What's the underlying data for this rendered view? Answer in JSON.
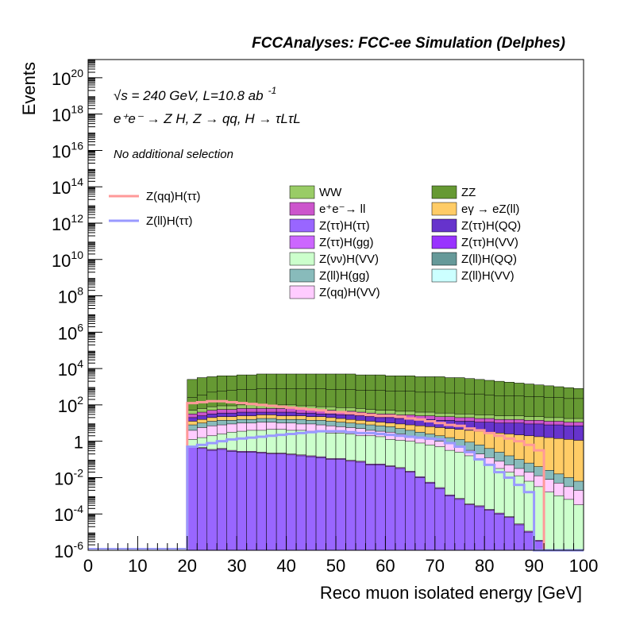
{
  "chart_data": {
    "type": "area",
    "title": "FCCAnalyses: FCC-ee Simulation (Delphes)",
    "xlabel": "Reco muon isolated energy [GeV]",
    "ylabel": "Events",
    "xlim": [
      0,
      100
    ],
    "ylim": [
      1e-06,
      1e+21
    ],
    "yscale": "log",
    "grid": false,
    "legend_position": "top-right",
    "annotations": {
      "energy": "√s = 240 GeV, L=10.8 ab",
      "energy_sup": "-1",
      "process": "e⁺e⁻ → Z H, Z → qq, H → τLτL",
      "selection": "No additional selection"
    },
    "x_ticks": [
      0,
      10,
      20,
      30,
      40,
      50,
      60,
      70,
      80,
      90,
      100
    ],
    "x_tick_labels": [
      "0",
      "10",
      "20",
      "30",
      "40",
      "50",
      "60",
      "70",
      "80",
      "90",
      "100"
    ],
    "y_ticks": [
      1e-06,
      0.0001,
      0.01,
      1,
      100.0,
      10000.0,
      1000000.0,
      100000000.0,
      10000000000.0,
      1000000000000.0,
      100000000000000.0,
      1e+16,
      1e+18,
      1e+20
    ],
    "y_tick_labels": [
      {
        "base": "10",
        "exp": "-6"
      },
      {
        "base": "10",
        "exp": "-4"
      },
      {
        "base": "10",
        "exp": "-2"
      },
      {
        "base": "1",
        "exp": ""
      },
      {
        "base": "10",
        "exp": "2"
      },
      {
        "base": "10",
        "exp": "4"
      },
      {
        "base": "10",
        "exp": "6"
      },
      {
        "base": "10",
        "exp": "8"
      },
      {
        "base": "10",
        "exp": "10"
      },
      {
        "base": "10",
        "exp": "12"
      },
      {
        "base": "10",
        "exp": "14"
      },
      {
        "base": "10",
        "exp": "16"
      },
      {
        "base": "10",
        "exp": "18"
      },
      {
        "base": "10",
        "exp": "20"
      }
    ],
    "bin_edges_start": 20,
    "bin_width": 2,
    "stack_levels": [
      {
        "log_values": [
          -0.3,
          -0.4,
          -0.5,
          -0.45,
          -0.55,
          -0.6,
          -0.6,
          -0.65,
          -0.7,
          -0.7,
          -0.75,
          -0.8,
          -0.85,
          -0.9,
          -1.0,
          -1.0,
          -1.1,
          -1.15,
          -1.3,
          -1.3,
          -1.4,
          -1.5,
          -1.7,
          -2.0,
          -2.3,
          -2.6,
          -3.0,
          -3.2,
          -3.5,
          -3.6,
          -3.8,
          -4.0,
          -4.2,
          -4.6,
          -5.0,
          -5.5,
          -6.0,
          -6.0,
          -6.0,
          -6.0
        ],
        "color": "#9966ff"
      },
      {
        "log_values": [
          -0.25,
          -0.35,
          -0.45,
          -0.4,
          -0.5,
          -0.55,
          -0.55,
          -0.6,
          -0.65,
          -0.65,
          -0.7,
          -0.75,
          -0.8,
          -0.85,
          -0.95,
          -0.95,
          -1.05,
          -1.1,
          -1.25,
          -1.25,
          -1.35,
          -1.45,
          -1.65,
          -1.95,
          -2.25,
          -2.55,
          -2.95,
          -3.15,
          -3.45,
          -3.55,
          -3.75,
          -3.95,
          -4.15,
          -4.55,
          -4.95,
          -5.45,
          -5.95,
          -5.95,
          -5.95,
          -5.95
        ],
        "color": "#cc66ff"
      },
      {
        "log_values": [
          0.1,
          0.2,
          0.3,
          0.4,
          0.5,
          0.55,
          0.6,
          0.6,
          0.65,
          0.65,
          0.6,
          0.6,
          0.55,
          0.5,
          0.45,
          0.45,
          0.4,
          0.3,
          0.3,
          0.25,
          0.1,
          0.05,
          0.0,
          -0.1,
          -0.2,
          -0.3,
          -0.5,
          -0.6,
          -0.8,
          -1.0,
          -1.3,
          -1.5,
          -1.7,
          -1.9,
          -2.2,
          -2.5,
          -2.8,
          -3.0,
          -3.2,
          -3.5
        ],
        "color": "#ccffcc"
      },
      {
        "log_values": [
          0.6,
          0.75,
          0.85,
          0.9,
          0.95,
          1.0,
          1.0,
          1.05,
          1.05,
          1.0,
          1.0,
          0.95,
          0.95,
          0.9,
          0.85,
          0.8,
          0.75,
          0.7,
          0.6,
          0.55,
          0.5,
          0.4,
          0.3,
          0.2,
          0.1,
          0.0,
          -0.1,
          -0.3,
          -0.5,
          -0.7,
          -0.9,
          -1.1,
          -1.3,
          -1.5,
          -1.7,
          -1.9,
          -2.1,
          -2.3,
          -2.5,
          -2.7
        ],
        "color": "#ffccff"
      },
      {
        "log_values": [
          0.9,
          1.0,
          1.1,
          1.15,
          1.15,
          1.2,
          1.2,
          1.25,
          1.25,
          1.2,
          1.2,
          1.2,
          1.15,
          1.15,
          1.1,
          1.05,
          1.0,
          0.95,
          0.9,
          0.85,
          0.8,
          0.7,
          0.6,
          0.5,
          0.4,
          0.3,
          0.2,
          0.1,
          -0.05,
          -0.2,
          -0.4,
          -0.6,
          -0.8,
          -1.0,
          -1.2,
          -1.4,
          -1.6,
          -1.8,
          -2.0,
          -2.2
        ],
        "color": "#88bbbb"
      },
      {
        "log_values": [
          1.1,
          1.2,
          1.3,
          1.35,
          1.35,
          1.4,
          1.4,
          1.45,
          1.45,
          1.4,
          1.4,
          1.4,
          1.35,
          1.35,
          1.3,
          1.25,
          1.2,
          1.15,
          1.1,
          1.05,
          1.0,
          0.95,
          0.9,
          0.85,
          0.8,
          0.75,
          0.7,
          0.65,
          0.6,
          0.55,
          0.5,
          0.45,
          0.4,
          0.35,
          0.3,
          0.25,
          0.2,
          0.15,
          0.1,
          0.05
        ],
        "color": "#ffcc66"
      },
      {
        "log_values": [
          1.3,
          1.4,
          1.5,
          1.55,
          1.55,
          1.6,
          1.6,
          1.6,
          1.6,
          1.6,
          1.6,
          1.55,
          1.55,
          1.5,
          1.5,
          1.45,
          1.45,
          1.4,
          1.35,
          1.3,
          1.3,
          1.25,
          1.25,
          1.2,
          1.2,
          1.15,
          1.15,
          1.1,
          1.1,
          1.05,
          1.05,
          1.0,
          1.0,
          1.0,
          0.95,
          0.95,
          0.9,
          0.9,
          0.85,
          0.85
        ],
        "color": "#6633cc"
      },
      {
        "log_values": [
          1.5,
          1.6,
          1.7,
          1.75,
          1.75,
          1.8,
          1.8,
          1.8,
          1.8,
          1.8,
          1.8,
          1.75,
          1.75,
          1.7,
          1.7,
          1.65,
          1.65,
          1.6,
          1.55,
          1.5,
          1.5,
          1.45,
          1.45,
          1.4,
          1.4,
          1.35,
          1.35,
          1.3,
          1.3,
          1.25,
          1.25,
          1.2,
          1.2,
          1.2,
          1.15,
          1.15,
          1.1,
          1.1,
          1.05,
          1.05
        ],
        "color": "#cc55cc"
      },
      {
        "log_values": [
          1.7,
          1.8,
          1.9,
          1.95,
          1.95,
          2.0,
          2.0,
          2.0,
          2.0,
          2.0,
          2.0,
          1.95,
          1.95,
          1.9,
          1.9,
          1.85,
          1.85,
          1.8,
          1.75,
          1.7,
          1.7,
          1.65,
          1.65,
          1.6,
          1.6,
          1.55,
          1.55,
          1.5,
          1.5,
          1.45,
          1.45,
          1.4,
          1.4,
          1.4,
          1.35,
          1.35,
          1.3,
          1.3,
          1.25,
          1.25
        ],
        "color": "#99cc66"
      },
      {
        "log_values": [
          2.4,
          2.55,
          2.7,
          2.75,
          2.8,
          2.85,
          2.85,
          2.9,
          2.9,
          2.9,
          2.9,
          2.9,
          2.9,
          2.9,
          2.85,
          2.85,
          2.85,
          2.8,
          2.8,
          2.8,
          2.75,
          2.75,
          2.75,
          2.7,
          2.7,
          2.7,
          2.65,
          2.65,
          2.6,
          2.6,
          2.55,
          2.5,
          2.5,
          2.5,
          2.45,
          2.45,
          2.4,
          2.4,
          2.35,
          2.35
        ],
        "color": "#669933"
      },
      {
        "log_values": [
          3.4,
          3.5,
          3.55,
          3.6,
          3.6,
          3.65,
          3.65,
          3.7,
          3.7,
          3.7,
          3.7,
          3.7,
          3.7,
          3.7,
          3.7,
          3.7,
          3.7,
          3.65,
          3.65,
          3.65,
          3.6,
          3.6,
          3.6,
          3.55,
          3.55,
          3.55,
          3.5,
          3.5,
          3.45,
          3.4,
          3.35,
          3.3,
          3.25,
          3.2,
          3.15,
          3.1,
          3.05,
          3.0,
          2.95,
          2.9
        ],
        "color": "#669933"
      }
    ],
    "series": [
      {
        "name": "WW",
        "color": "#99cc66",
        "type": "fill"
      },
      {
        "name": "ZZ",
        "color": "#669933",
        "type": "fill"
      },
      {
        "name": "e⁺e⁻→ ll",
        "color": "#cc55cc",
        "type": "fill"
      },
      {
        "name": "eγ → eZ(ll)",
        "color": "#ffcc66",
        "type": "fill"
      },
      {
        "name": "Z(ττ)H(ττ)",
        "color": "#9966ff",
        "type": "fill"
      },
      {
        "name": "Z(ττ)H(QQ)",
        "color": "#6633cc",
        "type": "fill"
      },
      {
        "name": "Z(ττ)H(gg)",
        "color": "#cc66ff",
        "type": "fill"
      },
      {
        "name": "Z(ττ)H(VV)",
        "color": "#9933ff",
        "type": "fill"
      },
      {
        "name": "Z(νν)H(VV)",
        "color": "#ccffcc",
        "type": "fill"
      },
      {
        "name": "Z(ll)H(QQ)",
        "color": "#669999",
        "type": "fill"
      },
      {
        "name": "Z(ll)H(gg)",
        "color": "#88bbbb",
        "type": "fill"
      },
      {
        "name": "Z(ll)H(VV)",
        "color": "#ccffff",
        "type": "fill"
      },
      {
        "name": "Z(qq)H(VV)",
        "color": "#ffccff",
        "type": "fill"
      },
      {
        "name": "Z(qq)H(ττ)",
        "color": "#ff9999",
        "type": "line",
        "log_values": [
          2.1,
          2.15,
          2.2,
          2.2,
          2.15,
          2.1,
          2.05,
          2.0,
          1.95,
          1.9,
          1.85,
          1.8,
          1.75,
          1.7,
          1.6,
          1.6,
          1.55,
          1.5,
          1.45,
          1.4,
          1.4,
          1.35,
          1.25,
          1.2,
          1.1,
          1.0,
          0.9,
          0.85,
          0.7,
          0.6,
          0.45,
          0.3,
          0.15,
          0.0,
          -0.2,
          -0.5,
          -6.0,
          -6.0,
          -6.0,
          -6.0
        ]
      },
      {
        "name": "Z(ll)H(ττ)",
        "color": "#9999ff",
        "type": "line",
        "log_values": [
          -0.3,
          -0.2,
          -0.1,
          0.0,
          0.1,
          0.15,
          0.2,
          0.25,
          0.3,
          0.35,
          0.4,
          0.45,
          0.5,
          0.55,
          0.55,
          0.55,
          0.5,
          0.45,
          0.45,
          0.4,
          0.35,
          0.3,
          0.25,
          0.2,
          0.15,
          0.1,
          -0.1,
          -0.3,
          -0.6,
          -1.0,
          -1.3,
          -1.7,
          -2.0,
          -2.4,
          -2.8,
          -6.0,
          -6.0,
          -6.0,
          -6.0,
          -6.0
        ]
      }
    ]
  }
}
